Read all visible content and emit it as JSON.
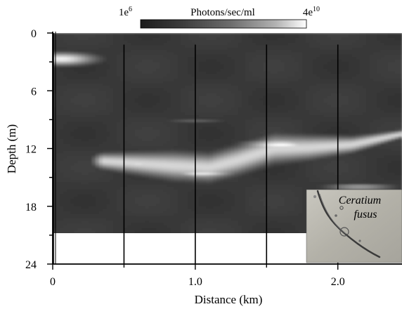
{
  "chart_data": {
    "type": "heatmap",
    "xlabel": "Distance (km)",
    "ylabel": "Depth (m)",
    "xlim": [
      0,
      2.45
    ],
    "ylim": [
      24,
      0
    ],
    "x_ticks": [
      "0",
      "1.0",
      "2.0"
    ],
    "x_tick_values": [
      0,
      1.0,
      2.0
    ],
    "y_ticks": [
      "0",
      "6",
      "12",
      "18",
      "24"
    ],
    "y_tick_values": [
      0,
      6,
      12,
      18,
      24
    ],
    "data_bottom_depth_m": 21,
    "sample_transect_km": [
      0,
      0.5,
      1.0,
      1.5,
      2.0
    ],
    "colorbar": {
      "title": "Photons/sec/ml",
      "min_base": "1e",
      "min_exp": "6",
      "max_base": "4e",
      "max_exp": "10",
      "scale": "log"
    },
    "background_level": 0.12,
    "features": [
      {
        "shape": "blob",
        "x_km": 0.06,
        "depth_m": 2.7,
        "width_km": 0.52,
        "height_m": 1.4,
        "level": 0.95
      },
      {
        "shape": "band",
        "x_km": [
          0.35,
          0.85,
          1.1,
          1.3,
          1.55,
          1.8,
          2.1,
          2.45
        ],
        "depth_m": [
          13.3,
          13.8,
          14.0,
          13.2,
          12.0,
          11.9,
          11.6,
          10.5
        ],
        "thickness_m": [
          1.6,
          2.8,
          2.8,
          2.9,
          2.9,
          2.4,
          1.6,
          0.8
        ],
        "level": 0.82
      },
      {
        "shape": "blob",
        "x_km": 1.6,
        "depth_m": 11.6,
        "width_km": 0.55,
        "height_m": 1.0,
        "level": 1.0
      },
      {
        "shape": "blob",
        "x_km": 1.05,
        "depth_m": 14.6,
        "width_km": 0.5,
        "height_m": 0.9,
        "level": 0.9
      },
      {
        "shape": "blob",
        "x_km": 0.6,
        "depth_m": 13.6,
        "width_km": 0.45,
        "height_m": 1.0,
        "level": 0.85
      },
      {
        "shape": "blob",
        "x_km": 2.15,
        "depth_m": 16.0,
        "width_km": 0.55,
        "height_m": 0.7,
        "level": 0.6
      },
      {
        "shape": "blob",
        "x_km": 1.0,
        "depth_m": 9.1,
        "width_km": 0.5,
        "height_m": 0.5,
        "level": 0.3
      }
    ],
    "inset": {
      "label_line1": "Ceratium",
      "label_line2": "fusus"
    }
  }
}
